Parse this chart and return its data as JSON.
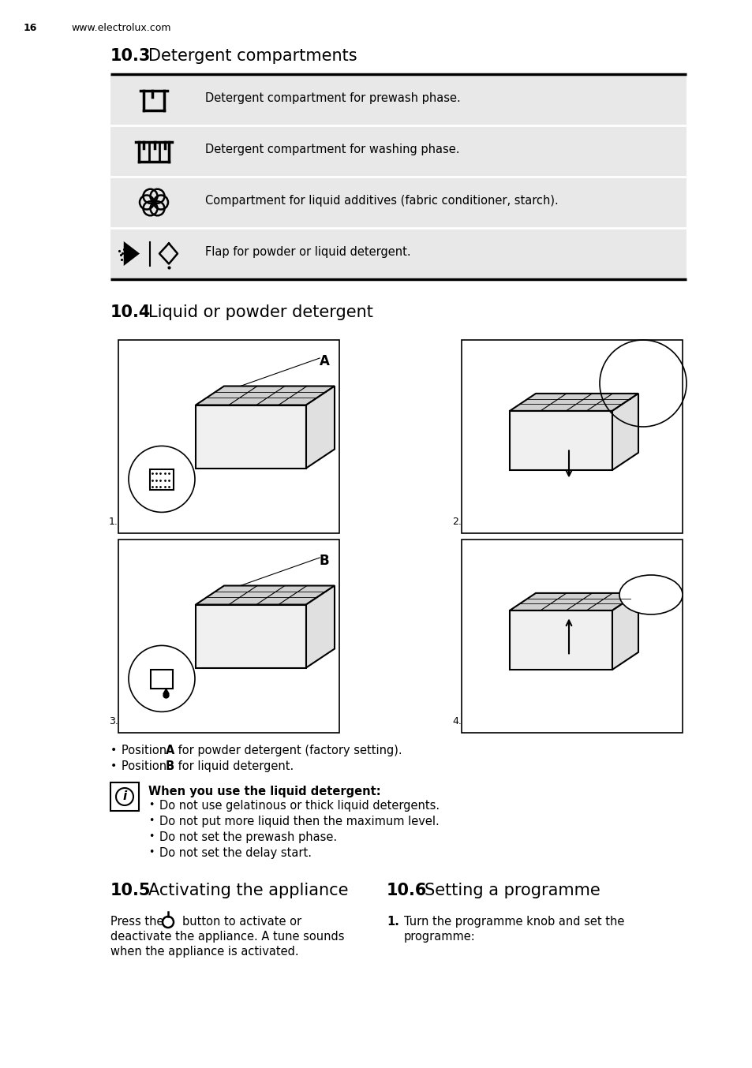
{
  "page_num": "16",
  "website": "www.electrolux.com",
  "section_10_3_bold": "10.3",
  "section_10_3_text": "Detergent compartments",
  "table_rows": [
    {
      "text": "Detergent compartment for prewash phase."
    },
    {
      "text": "Detergent compartment for washing phase."
    },
    {
      "text": "Compartment for liquid additives (fabric conditioner, starch)."
    },
    {
      "text": "Flap for powder or liquid detergent."
    }
  ],
  "section_10_4_bold": "10.4",
  "section_10_4_text": "Liquid or powder detergent",
  "section_10_5_bold": "10.5",
  "section_10_5_text": "Activating the appliance",
  "section_10_6_bold": "10.6",
  "section_10_6_text": "Setting a programme",
  "bullet_1_post": "for powder detergent (factory setting).",
  "bullet_2_post": "for liquid detergent.",
  "info_title": "When you use the liquid detergent:",
  "info_bullets": [
    "Do not use gelatinous or thick liquid detergents.",
    "Do not put more liquid then the maximum level.",
    "Do not set the prewash phase.",
    "Do not set the delay start."
  ],
  "bg_color": "#ffffff",
  "table_bg": "#e8e8e8",
  "text_color": "#000000",
  "font_size_body": 10.5,
  "font_size_section": 15,
  "font_size_header": 9
}
